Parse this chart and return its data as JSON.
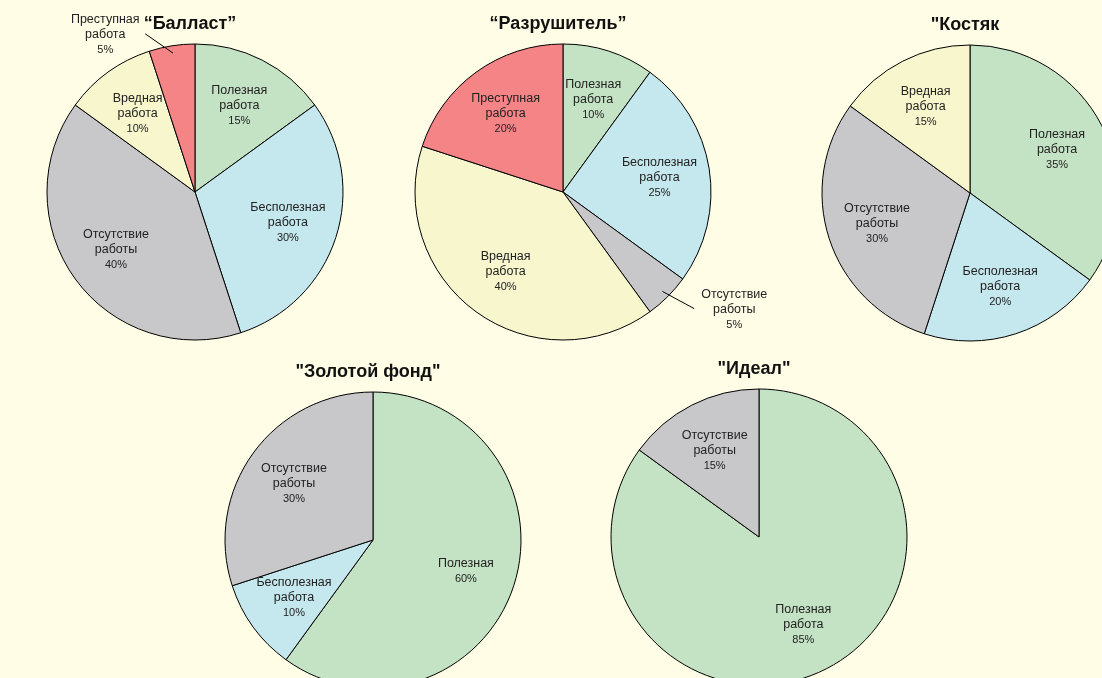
{
  "chart_data": [
    {
      "type": "pie",
      "title": "“Балласт”",
      "categories": [
        "Полезная работа",
        "Бесполезная работа",
        "Отсутствие работы",
        "Вредная работа",
        "Преступная работа"
      ],
      "values": [
        15,
        30,
        40,
        10,
        5
      ],
      "value_labels": [
        "15%",
        "30%",
        "40%",
        "10%",
        "5%"
      ],
      "colors": [
        "#c4e3c4",
        "#c5e7ee",
        "#c8c8ca",
        "#f8f6cc",
        "#f48486"
      ]
    },
    {
      "type": "pie",
      "title": "“Разрушитель”",
      "categories": [
        "Полезная работа",
        "Бесполезная работа",
        "Отсутствие работы",
        "Вредная работа",
        "Преступная работа"
      ],
      "values": [
        10,
        25,
        5,
        40,
        20
      ],
      "value_labels": [
        "10%",
        "25%",
        "5%",
        "40%",
        "20%"
      ],
      "colors": [
        "#c4e3c4",
        "#c5e7ee",
        "#c8c8ca",
        "#f8f6cc",
        "#f48486"
      ]
    },
    {
      "type": "pie",
      "title": "\"Костяк",
      "categories": [
        "Полезная работа",
        "Бесполезная работа",
        "Отсутствие работы",
        "Вредная работа"
      ],
      "values": [
        35,
        20,
        30,
        15
      ],
      "value_labels": [
        "35%",
        "20%",
        "30%",
        "15%"
      ],
      "colors": [
        "#c4e3c4",
        "#c5e7ee",
        "#c8c8ca",
        "#f8f6cc"
      ]
    },
    {
      "type": "pie",
      "title": "\"Золотой фонд\"",
      "categories": [
        "Полезная",
        "Бесполезная работа",
        "Отсутствие работы"
      ],
      "values": [
        60,
        10,
        30
      ],
      "value_labels": [
        "60%",
        "10%",
        "30%"
      ],
      "colors": [
        "#c4e3c4",
        "#c5e7ee",
        "#c8c8ca"
      ]
    },
    {
      "type": "pie",
      "title": "\"Идеал\"",
      "categories": [
        "Полезная работа",
        "Отсутствие работы"
      ],
      "values": [
        85,
        15
      ],
      "value_labels": [
        "85%",
        "15%"
      ],
      "colors": [
        "#c4e3c4",
        "#c8c8ca"
      ]
    }
  ]
}
